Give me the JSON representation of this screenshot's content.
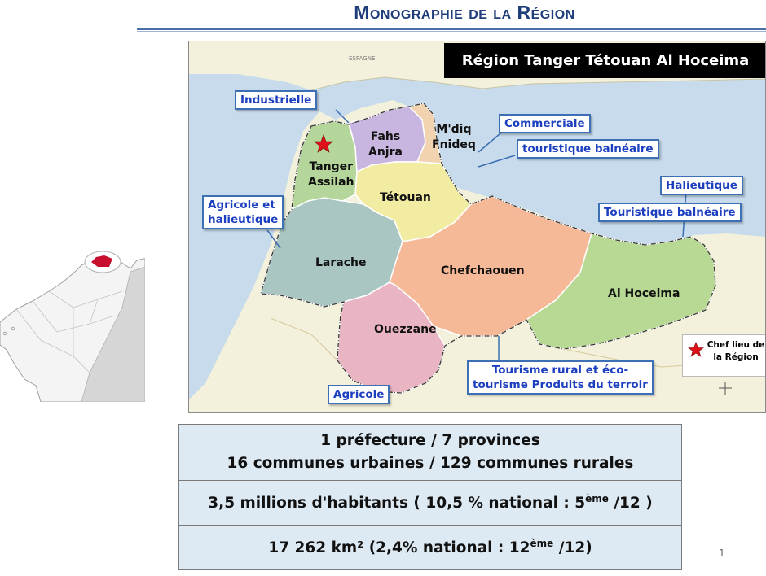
{
  "slide": {
    "title": "Monographie de la Région",
    "page_number": "1"
  },
  "map": {
    "banner": "Région Tanger Tétouan Al Hoceima",
    "provinces": [
      {
        "id": "tanger-assilah",
        "lines": [
          "Tanger",
          "Assilah"
        ],
        "color": "#b5d69b"
      },
      {
        "id": "fahs-anjra",
        "lines": [
          "Fahs",
          "Anjra"
        ],
        "color": "#c8b6e0"
      },
      {
        "id": "mdiq-fnideq",
        "lines": [
          "M'diq",
          "Fnideq"
        ],
        "color": "#f2d3b0"
      },
      {
        "id": "tetouan",
        "lines": [
          "Tétouan"
        ],
        "color": "#f2eca3"
      },
      {
        "id": "larache",
        "lines": [
          "Larache"
        ],
        "color": "#a9c6c3"
      },
      {
        "id": "chefchaouen",
        "lines": [
          "Chefchaouen"
        ],
        "color": "#f5b997"
      },
      {
        "id": "ouezzane",
        "lines": [
          "Ouezzane"
        ],
        "color": "#e9b5c3"
      },
      {
        "id": "al-hoceima",
        "lines": [
          "Al Hoceima"
        ],
        "color": "#b8d993"
      }
    ],
    "callouts": {
      "industrielle": "Industrielle",
      "commerciale": "Commerciale",
      "touristique_balneaire_1": "touristique balnéaire",
      "agricole_halieutique": [
        "Agricole et",
        "halieutique"
      ],
      "halieutique": "Halieutique",
      "touristique_balneaire_2": "Touristique balnéaire",
      "tourisme_rural": [
        "Tourisme rural et éco-",
        "tourisme Produits du terroir"
      ],
      "agricole": "Agricole"
    },
    "legend": {
      "label": [
        "Chef lieu de",
        "la Région"
      ],
      "star_color": "#e0101a"
    },
    "colors": {
      "sea": "#c7dbec",
      "land_outside": "#f3f1dc",
      "callout_border": "#3d6fb5",
      "callout_text": "#1c3fbf"
    }
  },
  "stats": {
    "row1_line1": "1 préfecture / 7 provinces",
    "row1_line2": "16 communes urbaines  / 129 communes rurales",
    "row2_text": "3,5 millions d'habitants ( 10,5 % national : 5",
    "row2_sup": "ème",
    "row2_end": " /12 )",
    "row3_text": "17 262 km²   (2,4% national  : 12",
    "row3_sup": "ème",
    "row3_end": " /12)"
  }
}
